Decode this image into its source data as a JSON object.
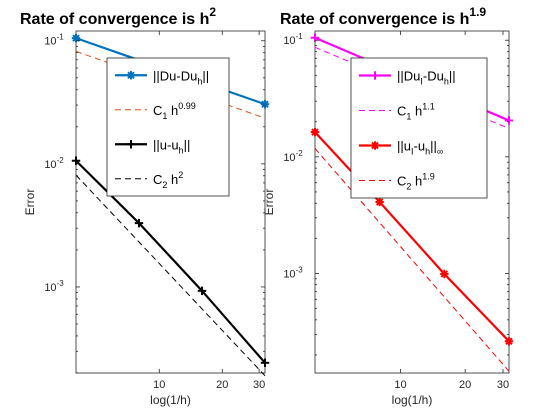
{
  "chart_data": [
    {
      "type": "line",
      "title": {
        "main": "Rate of convergence is h",
        "sup": "2"
      },
      "xlabel": "log(1/h)",
      "ylabel": "Error",
      "xscale": "log",
      "yscale": "log",
      "xlim": [
        4,
        32
      ],
      "ylim": [
        0.0002,
        0.12
      ],
      "x_ticks": [
        {
          "value": 10,
          "label": "10"
        },
        {
          "value": 20,
          "label": "20"
        },
        {
          "value": 30,
          "label": "30"
        }
      ],
      "y_ticks": [
        {
          "value": 0.1,
          "base": "10",
          "exp": "-1"
        },
        {
          "value": 0.01,
          "base": "10",
          "exp": "-2"
        },
        {
          "value": 0.001,
          "base": "10",
          "exp": "-3"
        }
      ],
      "legend_placement": "top-right",
      "series": [
        {
          "legend": {
            "text": "||Du-Du",
            "sub": "h",
            "suffix": "||"
          },
          "color": "#0072bd",
          "style": "solid",
          "marker": "asterisk",
          "x": [
            4,
            32
          ],
          "y": [
            0.105,
            0.0305
          ]
        },
        {
          "legend": {
            "text": "C",
            "sub": "1",
            "suffix": " h",
            "sup": "0.99"
          },
          "color": "#d95319",
          "style": "dashed",
          "marker": "none",
          "x": [
            4,
            32
          ],
          "y": [
            0.082,
            0.0235
          ]
        },
        {
          "legend": {
            "text": "||u-u",
            "sub": "h",
            "suffix": "||"
          },
          "color": "#000000",
          "style": "solid",
          "marker": "plus",
          "x": [
            4,
            8,
            16,
            32
          ],
          "y": [
            0.0106,
            0.0033,
            0.00093,
            0.000242
          ]
        },
        {
          "legend": {
            "text": "C",
            "sub": "2",
            "suffix": " h",
            "sup": "2"
          },
          "color": "#000000",
          "style": "dashed",
          "marker": "none",
          "x": [
            4,
            32
          ],
          "y": [
            0.0081,
            0.00019
          ]
        }
      ]
    },
    {
      "type": "line",
      "title": {
        "main": "Rate of convergence is h",
        "sup": "1.9"
      },
      "xlabel": "log(1/h)",
      "ylabel": "Error",
      "xscale": "log",
      "yscale": "log",
      "xlim": [
        4,
        32
      ],
      "ylim": [
        0.00014,
        0.12
      ],
      "x_ticks": [
        {
          "value": 10,
          "label": "10"
        },
        {
          "value": 20,
          "label": "20"
        },
        {
          "value": 30,
          "label": "30"
        }
      ],
      "y_ticks": [
        {
          "value": 0.1,
          "base": "10",
          "exp": "-1"
        },
        {
          "value": 0.01,
          "base": "10",
          "exp": "-2"
        },
        {
          "value": 0.001,
          "base": "10",
          "exp": "-3"
        }
      ],
      "legend_placement": "top-right",
      "series": [
        {
          "legend": {
            "text": "||Du",
            "sub": "I",
            "suffix": "-Du",
            "sub2": "h",
            "suffix2": "||"
          },
          "color": "#ff00ff",
          "style": "solid",
          "marker": "plus",
          "x": [
            4,
            32
          ],
          "y": [
            0.105,
            0.0205
          ]
        },
        {
          "legend": {
            "text": "C",
            "sub": "1",
            "suffix": " h",
            "sup": "1.1"
          },
          "color": "#ff00ff",
          "style": "dashed",
          "marker": "none",
          "x": [
            4,
            32
          ],
          "y": [
            0.087,
            0.0175
          ]
        },
        {
          "legend": {
            "text": "||u",
            "sub": "I",
            "suffix": "-u",
            "sub2": "h",
            "suffix2": "||",
            "sub3": "∞"
          },
          "color": "#ff0000",
          "style": "solid",
          "marker": "asterisk",
          "x": [
            4,
            8,
            16,
            32
          ],
          "y": [
            0.0163,
            0.0041,
            0.00099,
            0.000262
          ]
        },
        {
          "legend": {
            "text": "C",
            "sub": "2",
            "suffix": " h",
            "sup": "1.9"
          },
          "color": "#ff0000",
          "style": "dashed",
          "marker": "none",
          "x": [
            4,
            32
          ],
          "y": [
            0.0118,
            0.000145
          ]
        }
      ]
    }
  ]
}
